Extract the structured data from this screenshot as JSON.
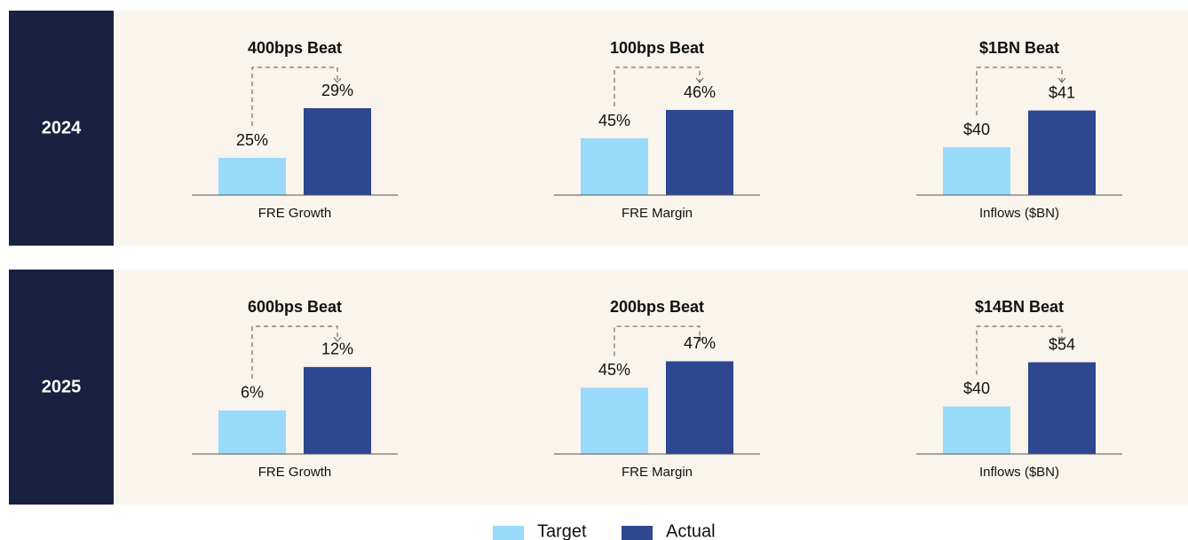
{
  "row_labels": [
    "2024",
    "2025"
  ],
  "legend": [
    {
      "name": "Target",
      "color": "#99dafb"
    },
    {
      "name": "Actual",
      "color": "#2f4691"
    }
  ],
  "chart_data": [
    {
      "type": "bar",
      "title": "400bps Beat",
      "xlabel": "FRE Growth",
      "values": [
        25,
        29
      ],
      "value_labels": [
        "25%",
        "29%"
      ],
      "ylim": [
        22,
        30
      ]
    },
    {
      "type": "bar",
      "title": "100bps Beat",
      "xlabel": "FRE Margin",
      "values": [
        45,
        46
      ],
      "value_labels": [
        "45%",
        "46%"
      ],
      "ylim": [
        43,
        46.5
      ]
    },
    {
      "type": "bar",
      "title": "$1BN Beat",
      "xlabel": "Inflows ($BN)",
      "values": [
        40,
        41
      ],
      "value_labels": [
        "$40",
        "$41"
      ],
      "ylim": [
        38.7,
        41.4
      ]
    },
    {
      "type": "bar",
      "title": "600bps Beat",
      "xlabel": "FRE Growth",
      "values": [
        6,
        12
      ],
      "value_labels": [
        "6%",
        "12%"
      ],
      "ylim": [
        0,
        13.7
      ]
    },
    {
      "type": "bar",
      "title": "200bps Beat",
      "xlabel": "FRE Margin",
      "values": [
        45,
        47
      ],
      "value_labels": [
        "45%",
        "47%"
      ],
      "ylim": [
        40,
        47.5
      ]
    },
    {
      "type": "bar",
      "title": "$14BN Beat",
      "xlabel": "Inflows ($BN)",
      "values": [
        40,
        54
      ],
      "value_labels": [
        "$40",
        "$54"
      ],
      "ylim": [
        25,
        56.4
      ]
    }
  ]
}
